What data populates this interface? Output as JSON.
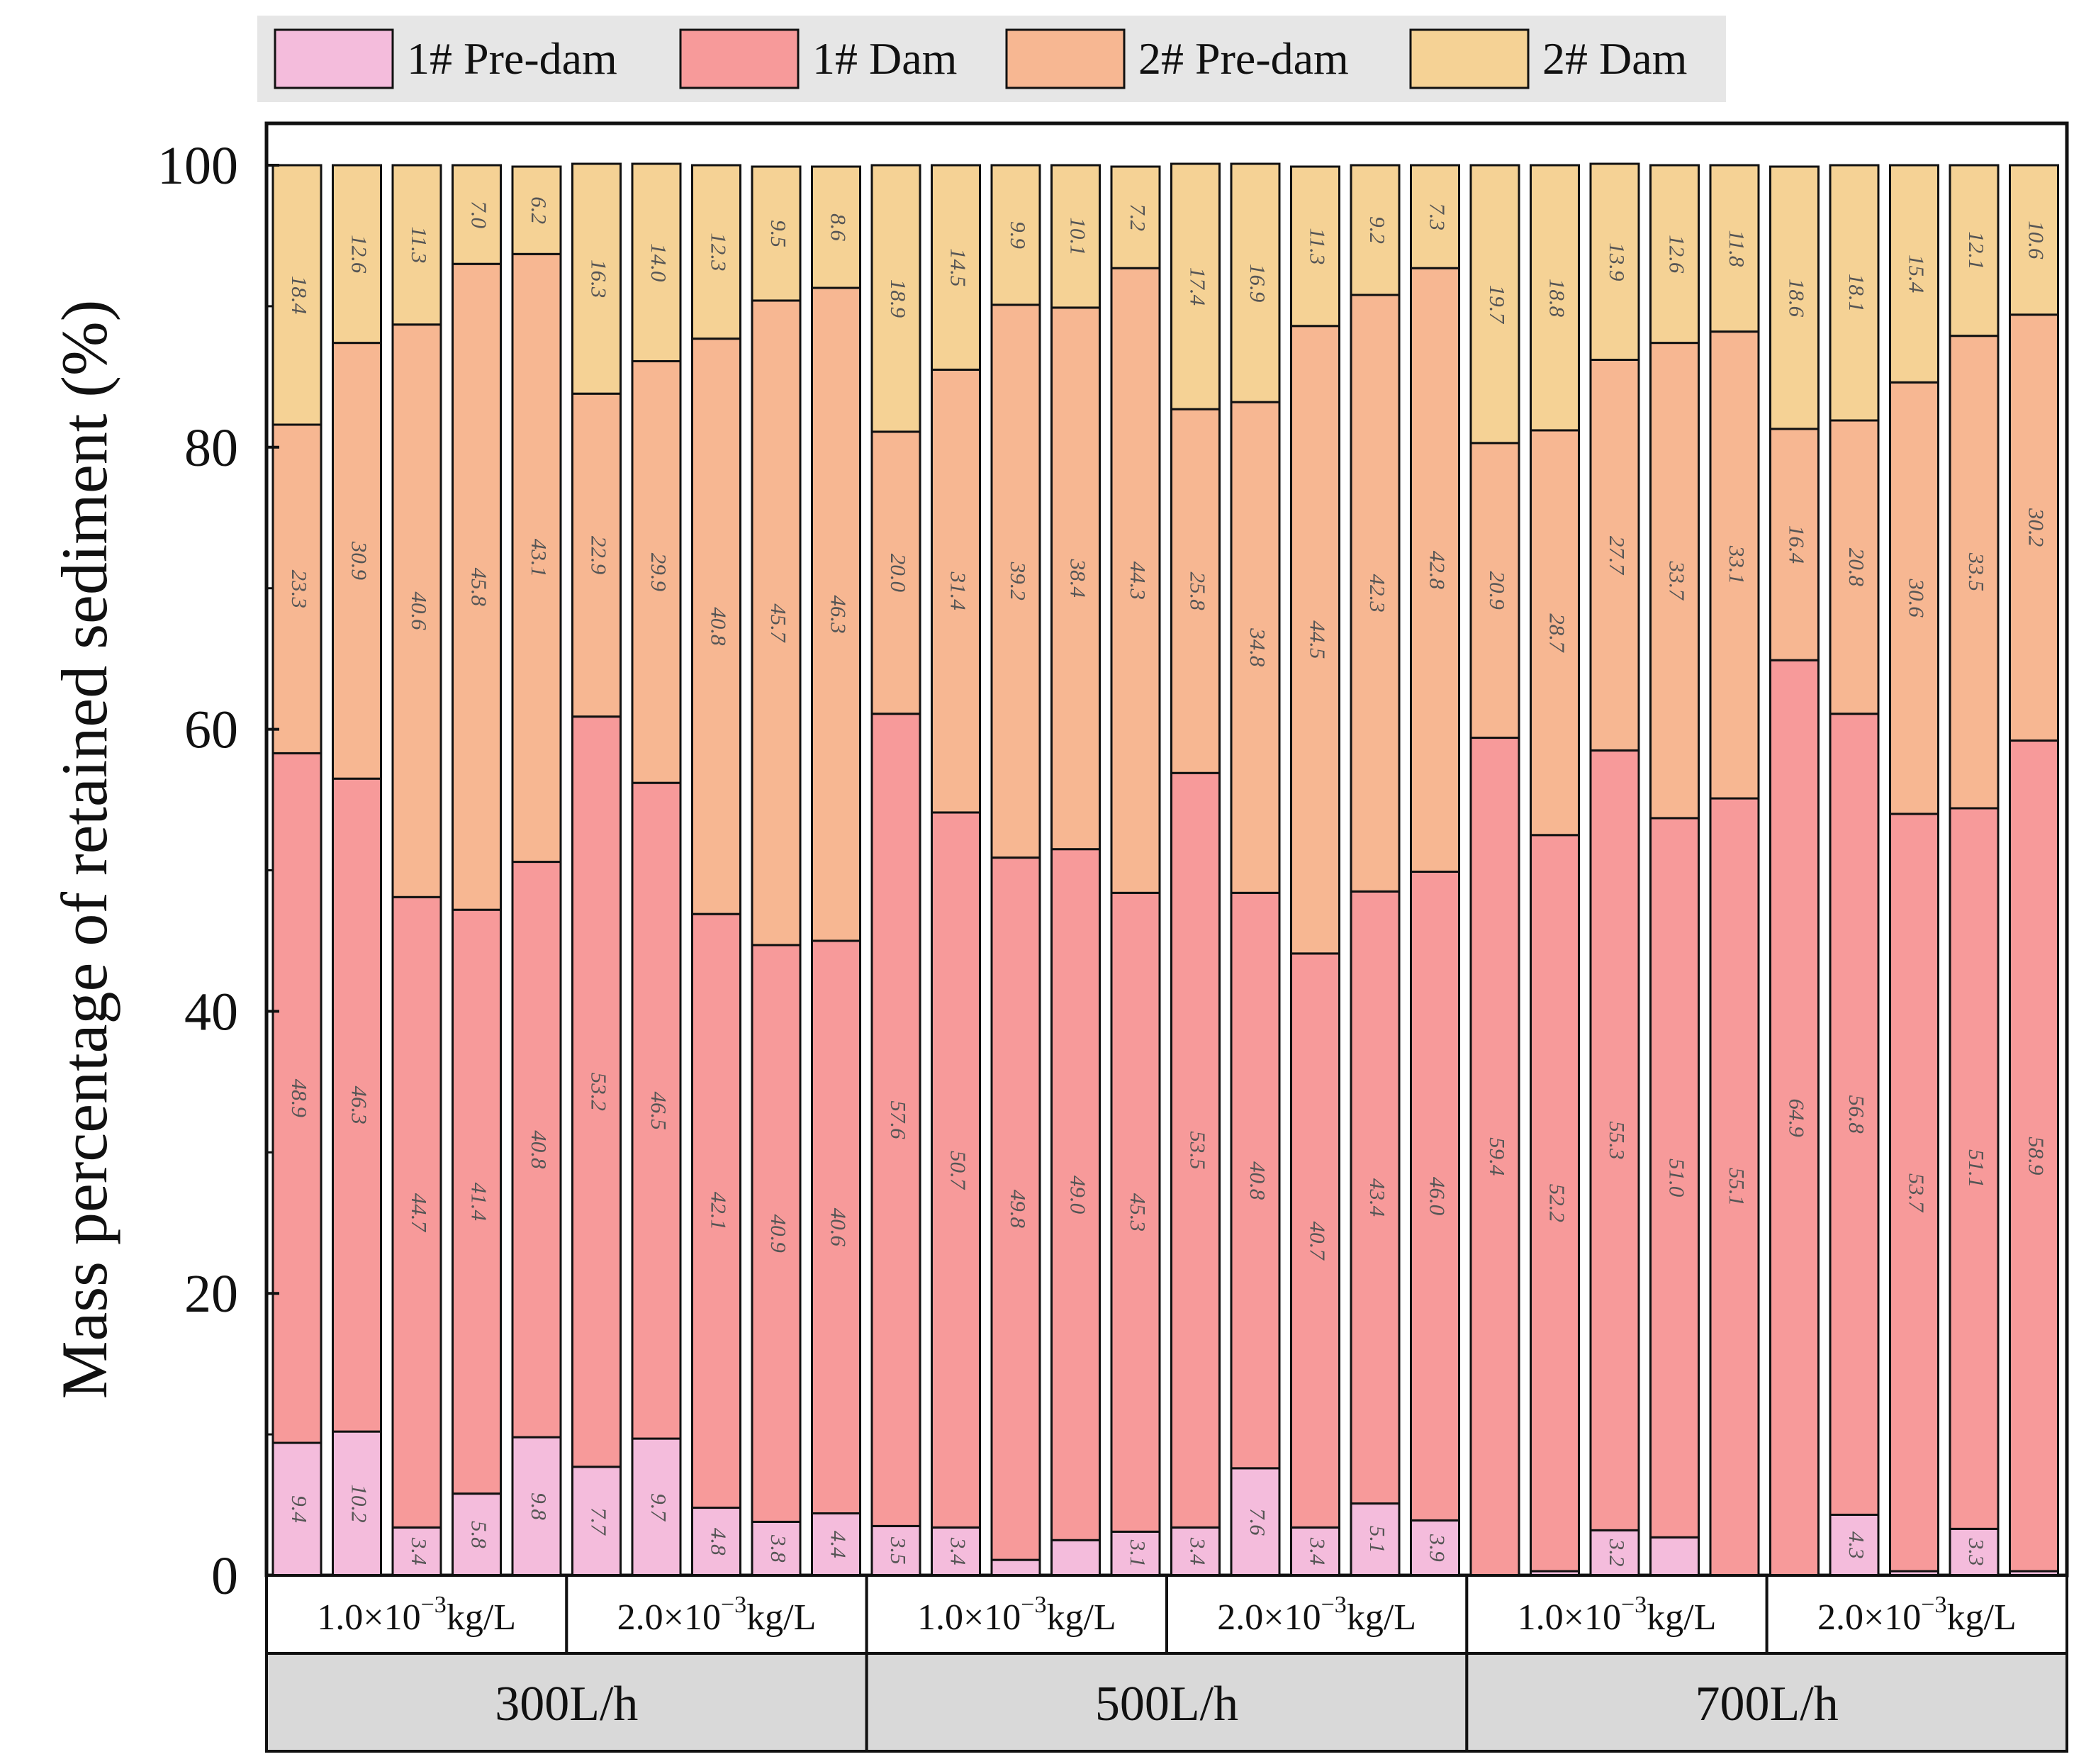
{
  "chart_data": {
    "type": "bar",
    "stacked": true,
    "orientation": "vertical",
    "ylabel": "Mass percentage of retained sediment (%)",
    "ylim": [
      0,
      100
    ],
    "yticks": [
      "0",
      "20",
      "40",
      "60",
      "80",
      "100"
    ],
    "legend_position": "top",
    "series": [
      {
        "name": "1# Pre-dam",
        "color": "#f4bcdc"
      },
      {
        "name": "1# Dam",
        "color": "#f79a9a"
      },
      {
        "name": "2# Pre-dam",
        "color": "#f7b792"
      },
      {
        "name": "2# Dam",
        "color": "#f5d295"
      }
    ],
    "groups": [
      {
        "flow": "300L/h",
        "subgroups": [
          {
            "concentration": {
              "base": "1.0×10",
              "exp": "−3",
              "unit": "kg/L"
            },
            "bars": [
              {
                "values": [
                  9.4,
                  48.9,
                  23.3,
                  18.4
                ],
                "labels": [
                  "9.4",
                  "48.9",
                  "23.3",
                  "18.4"
                ]
              },
              {
                "values": [
                  10.2,
                  46.3,
                  30.9,
                  12.6
                ],
                "labels": [
                  "10.2",
                  "46.3",
                  "30.9",
                  "12.6"
                ]
              },
              {
                "values": [
                  3.4,
                  44.7,
                  40.6,
                  11.3
                ],
                "labels": [
                  "3.4",
                  "44.7",
                  "40.6",
                  "11.3"
                ]
              },
              {
                "values": [
                  5.8,
                  41.4,
                  45.8,
                  7.0
                ],
                "labels": [
                  "5.8",
                  "41.4",
                  "45.8",
                  "7.0"
                ]
              },
              {
                "values": [
                  9.8,
                  40.8,
                  43.1,
                  6.2
                ],
                "labels": [
                  "9.8",
                  "40.8",
                  "43.1",
                  "6.2"
                ]
              }
            ]
          },
          {
            "concentration": {
              "base": "2.0×10",
              "exp": "−3",
              "unit": "kg/L"
            },
            "bars": [
              {
                "values": [
                  7.7,
                  53.2,
                  22.9,
                  16.3
                ],
                "labels": [
                  "7.7",
                  "53.2",
                  "22.9",
                  "16.3"
                ]
              },
              {
                "values": [
                  9.7,
                  46.5,
                  29.9,
                  14.0
                ],
                "labels": [
                  "9.7",
                  "46.5",
                  "29.9",
                  "14.0"
                ]
              },
              {
                "values": [
                  4.8,
                  42.1,
                  40.8,
                  12.3
                ],
                "labels": [
                  "4.8",
                  "42.1",
                  "40.8",
                  "12.3"
                ]
              },
              {
                "values": [
                  3.8,
                  40.9,
                  45.7,
                  9.5
                ],
                "labels": [
                  "3.8",
                  "40.9",
                  "45.7",
                  "9.5"
                ]
              },
              {
                "values": [
                  4.4,
                  40.6,
                  46.3,
                  8.6
                ],
                "labels": [
                  "4.4",
                  "40.6",
                  "46.3",
                  "8.6"
                ]
              }
            ]
          }
        ]
      },
      {
        "flow": "500L/h",
        "subgroups": [
          {
            "concentration": {
              "base": "1.0×10",
              "exp": "−3",
              "unit": "kg/L"
            },
            "bars": [
              {
                "values": [
                  3.5,
                  57.6,
                  20.0,
                  18.9
                ],
                "labels": [
                  "3.5",
                  "57.6",
                  "20.0",
                  "18.9"
                ]
              },
              {
                "values": [
                  3.4,
                  50.7,
                  31.4,
                  14.5
                ],
                "labels": [
                  "3.4",
                  "50.7",
                  "31.4",
                  "14.5"
                ]
              },
              {
                "values": [
                  1.1,
                  49.8,
                  39.2,
                  9.9
                ],
                "labels": [
                  "",
                  "49.8",
                  "39.2",
                  "9.9"
                ]
              },
              {
                "values": [
                  2.5,
                  49.0,
                  38.4,
                  10.1
                ],
                "labels": [
                  "",
                  "49.0",
                  "38.4",
                  "10.1"
                ]
              },
              {
                "values": [
                  3.1,
                  45.3,
                  44.3,
                  7.2
                ],
                "labels": [
                  "3.1",
                  "45.3",
                  "44.3",
                  "7.2"
                ]
              }
            ]
          },
          {
            "concentration": {
              "base": "2.0×10",
              "exp": "−3",
              "unit": "kg/L"
            },
            "bars": [
              {
                "values": [
                  3.4,
                  53.5,
                  25.8,
                  17.4
                ],
                "labels": [
                  "3.4",
                  "53.5",
                  "25.8",
                  "17.4"
                ]
              },
              {
                "values": [
                  7.6,
                  40.8,
                  34.8,
                  16.9
                ],
                "labels": [
                  "7.6",
                  "40.8",
                  "34.8",
                  "16.9"
                ]
              },
              {
                "values": [
                  3.4,
                  40.7,
                  44.5,
                  11.3
                ],
                "labels": [
                  "3.4",
                  "40.7",
                  "44.5",
                  "11.3"
                ]
              },
              {
                "values": [
                  5.1,
                  43.4,
                  42.3,
                  9.2
                ],
                "labels": [
                  "5.1",
                  "43.4",
                  "42.3",
                  "9.2"
                ]
              },
              {
                "values": [
                  3.9,
                  46.0,
                  42.8,
                  7.3
                ],
                "labels": [
                  "3.9",
                  "46.0",
                  "42.8",
                  "7.3"
                ]
              }
            ]
          }
        ]
      },
      {
        "flow": "700L/h",
        "subgroups": [
          {
            "concentration": {
              "base": "1.0×10",
              "exp": "−3",
              "unit": "kg/L"
            },
            "bars": [
              {
                "values": [
                  0.0,
                  59.4,
                  20.9,
                  19.7
                ],
                "labels": [
                  "",
                  "59.4",
                  "20.9",
                  "19.7"
                ]
              },
              {
                "values": [
                  0.3,
                  52.2,
                  28.7,
                  18.8
                ],
                "labels": [
                  "",
                  "52.2",
                  "28.7",
                  "18.8"
                ]
              },
              {
                "values": [
                  3.2,
                  55.3,
                  27.7,
                  13.9
                ],
                "labels": [
                  "3.2",
                  "55.3",
                  "27.7",
                  "13.9"
                ]
              },
              {
                "values": [
                  2.7,
                  51.0,
                  33.7,
                  12.6
                ],
                "labels": [
                  "",
                  "51.0",
                  "33.7",
                  "12.6"
                ]
              },
              {
                "values": [
                  0.0,
                  55.1,
                  33.1,
                  11.8
                ],
                "labels": [
                  "",
                  "55.1",
                  "33.1",
                  "11.8"
                ]
              }
            ]
          },
          {
            "concentration": {
              "base": "2.0×10",
              "exp": "−3",
              "unit": "kg/L"
            },
            "bars": [
              {
                "values": [
                  0.0,
                  64.9,
                  16.4,
                  18.6
                ],
                "labels": [
                  "",
                  "64.9",
                  "16.4",
                  "18.6"
                ]
              },
              {
                "values": [
                  4.3,
                  56.8,
                  20.8,
                  18.1
                ],
                "labels": [
                  "4.3",
                  "56.8",
                  "20.8",
                  "18.1"
                ]
              },
              {
                "values": [
                  0.3,
                  53.7,
                  30.6,
                  15.4
                ],
                "labels": [
                  "",
                  "53.7",
                  "30.6",
                  "15.4"
                ]
              },
              {
                "values": [
                  3.3,
                  51.1,
                  33.5,
                  12.1
                ],
                "labels": [
                  "3.3",
                  "51.1",
                  "33.5",
                  "12.1"
                ]
              },
              {
                "values": [
                  0.3,
                  58.9,
                  30.2,
                  10.6
                ],
                "labels": [
                  "",
                  "58.9",
                  "30.2",
                  "10.6"
                ]
              }
            ]
          }
        ]
      }
    ]
  }
}
